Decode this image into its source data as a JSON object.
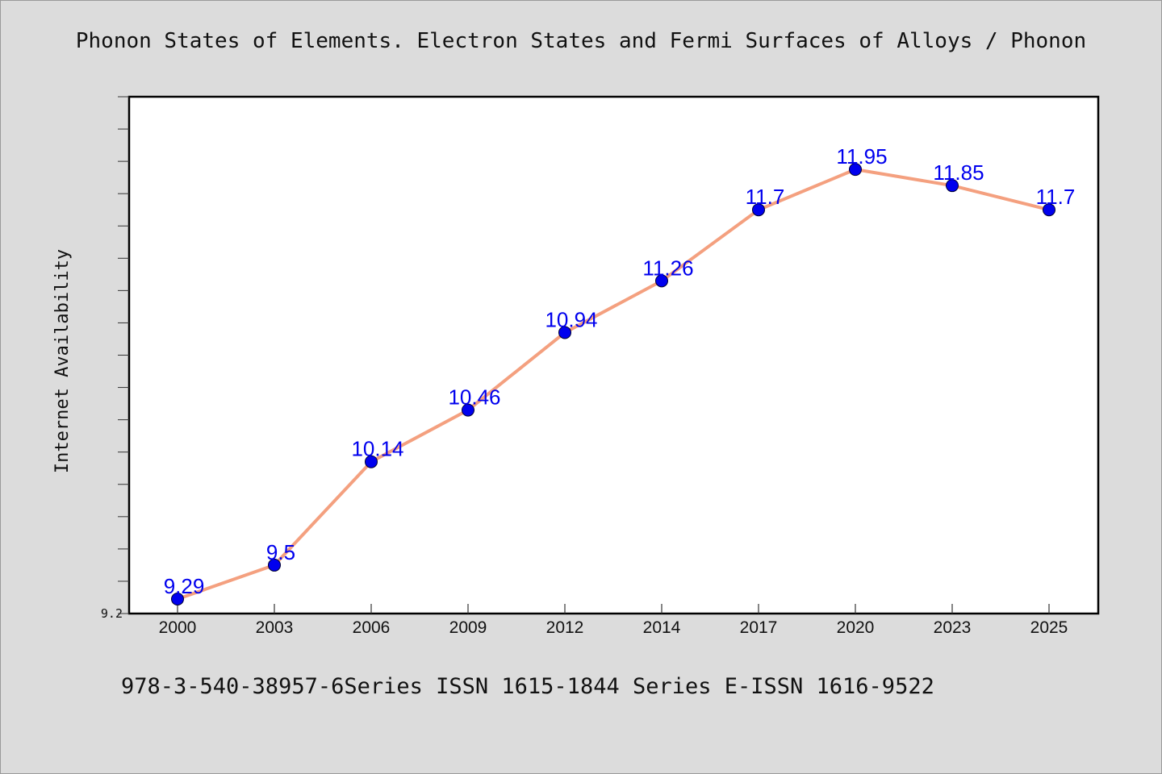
{
  "title": "Phonon States of Elements. Electron States and Fermi Surfaces of Alloys / Phonon",
  "footer": "978-3-540-38957-6Series ISSN 1615-1844 Series E-ISSN 1616-9522",
  "chart_data": {
    "type": "line",
    "title": "Phonon States of Elements. Electron States and Fermi Surfaces of Alloys / Phonon",
    "xlabel": "",
    "ylabel": "Internet Availability",
    "categories": [
      "2000",
      "2003",
      "2006",
      "2009",
      "2012",
      "2014",
      "2017",
      "2020",
      "2023",
      "2025"
    ],
    "series": [
      {
        "values": [
          9.29,
          9.5,
          10.14,
          10.46,
          10.94,
          11.26,
          11.7,
          11.95,
          11.85,
          11.7
        ],
        "labels": [
          "9.29",
          "9.5",
          "10.14",
          "10.46",
          "10.94",
          "11.26",
          "11.7",
          "11.95",
          "11.85",
          "11.7"
        ]
      }
    ],
    "ylim": [
      9.2,
      12.4
    ],
    "y_tick_labels": [
      "9.2"
    ],
    "grid": false,
    "legend": "none",
    "colors": {
      "line": "#f4a07f",
      "marker": "#0000ee",
      "label": "#0000ee"
    }
  }
}
